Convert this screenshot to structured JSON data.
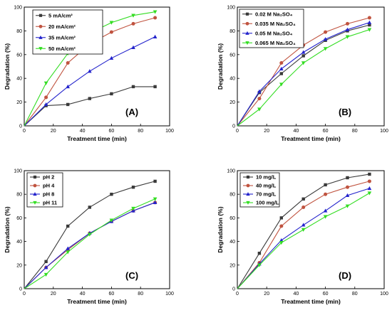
{
  "figure": {
    "panels": [
      {
        "tag": "(A)"
      },
      {
        "tag": "(B)"
      },
      {
        "tag": "(C)"
      },
      {
        "tag": "(D)"
      }
    ]
  },
  "chart_data": [
    {
      "type": "line",
      "panel": "(A)",
      "xlabel": "Treatment time (min)",
      "ylabel": "Degradation (%)",
      "xlim": [
        0,
        100
      ],
      "ylim": [
        0,
        100
      ],
      "xticks": [
        0,
        20,
        40,
        60,
        80,
        100
      ],
      "yticks": [
        0,
        20,
        40,
        60,
        80,
        100
      ],
      "x": [
        0,
        15,
        30,
        45,
        60,
        75,
        90
      ],
      "legend_position": "top-left",
      "series": [
        {
          "name": "5 mA/cm²",
          "color": "#3a3a3a",
          "marker": "square",
          "values": [
            0,
            17,
            18,
            23,
            27,
            33,
            33
          ]
        },
        {
          "name": "20 mA/cm²",
          "color": "#c0533f",
          "marker": "circle",
          "values": [
            0,
            24,
            53,
            69,
            79,
            86,
            91
          ]
        },
        {
          "name": "35 mA/cm²",
          "color": "#2323cc",
          "marker": "triangle-up",
          "values": [
            0,
            18,
            33,
            46,
            57,
            66,
            75
          ]
        },
        {
          "name": "50 mA/cm²",
          "color": "#33dd22",
          "marker": "triangle-down",
          "values": [
            0,
            36,
            61,
            78,
            87,
            93,
            96
          ]
        }
      ]
    },
    {
      "type": "line",
      "panel": "(B)",
      "xlabel": "Treatment time (min)",
      "ylabel": "Degradation (%)",
      "xlim": [
        0,
        100
      ],
      "ylim": [
        0,
        100
      ],
      "xticks": [
        0,
        20,
        40,
        60,
        80,
        100
      ],
      "yticks": [
        0,
        20,
        40,
        60,
        80,
        100
      ],
      "x": [
        0,
        15,
        30,
        45,
        60,
        75,
        90
      ],
      "legend_position": "top-left",
      "series": [
        {
          "name": "0.02 M Na₂SO₄",
          "color": "#3a3a3a",
          "marker": "square",
          "values": [
            0,
            28,
            44,
            59,
            72,
            80,
            85
          ]
        },
        {
          "name": "0.035 M Na₂SO₄",
          "color": "#c0533f",
          "marker": "circle",
          "values": [
            0,
            23,
            53,
            68,
            79,
            86,
            91
          ]
        },
        {
          "name": "0.05 M Na₂SO₄",
          "color": "#2323cc",
          "marker": "triangle-up",
          "values": [
            0,
            29,
            48,
            62,
            73,
            81,
            87
          ]
        },
        {
          "name": "0.065 M Na₂SO₄",
          "color": "#33dd22",
          "marker": "triangle-down",
          "values": [
            0,
            14,
            35,
            53,
            65,
            75,
            81
          ]
        }
      ]
    },
    {
      "type": "line",
      "panel": "(C)",
      "xlabel": "Treatment time (min)",
      "ylabel": "Degradation (%)",
      "xlim": [
        0,
        100
      ],
      "ylim": [
        0,
        100
      ],
      "xticks": [
        0,
        20,
        40,
        60,
        80,
        100
      ],
      "yticks": [
        0,
        20,
        40,
        60,
        80,
        100
      ],
      "x": [
        0,
        15,
        30,
        45,
        60,
        75,
        90
      ],
      "legend_position": "top-left",
      "series": [
        {
          "name": "pH 2",
          "color": "#3a3a3a",
          "marker": "square",
          "values": [
            0,
            23,
            53,
            69,
            80,
            86,
            91
          ]
        },
        {
          "name": "pH 4",
          "color": "#c0533f",
          "marker": "circle",
          "values": [
            0,
            18,
            33,
            47,
            57,
            66,
            73
          ]
        },
        {
          "name": "pH 8",
          "color": "#2323cc",
          "marker": "triangle-up",
          "values": [
            0,
            18,
            34,
            47,
            57,
            66,
            73
          ]
        },
        {
          "name": "pH 11",
          "color": "#33dd22",
          "marker": "triangle-down",
          "values": [
            0,
            12,
            31,
            46,
            58,
            68,
            76
          ]
        }
      ]
    },
    {
      "type": "line",
      "panel": "(D)",
      "xlabel": "Treatment time (min)",
      "ylabel": "Degradation (%)",
      "xlim": [
        0,
        100
      ],
      "ylim": [
        0,
        100
      ],
      "xticks": [
        0,
        20,
        40,
        60,
        80,
        100
      ],
      "yticks": [
        0,
        20,
        40,
        60,
        80,
        100
      ],
      "x": [
        0,
        15,
        30,
        45,
        60,
        75,
        90
      ],
      "legend_position": "top-left",
      "series": [
        {
          "name": "10 mg/L",
          "color": "#3a3a3a",
          "marker": "square",
          "values": [
            0,
            30,
            60,
            76,
            88,
            94,
            97
          ]
        },
        {
          "name": "40 mg/L",
          "color": "#c0533f",
          "marker": "circle",
          "values": [
            0,
            22,
            53,
            69,
            80,
            86,
            91
          ]
        },
        {
          "name": "70 mg/L",
          "color": "#2323cc",
          "marker": "triangle-up",
          "values": [
            0,
            21,
            41,
            54,
            66,
            79,
            85
          ]
        },
        {
          "name": "100 mg/L",
          "color": "#33dd22",
          "marker": "triangle-down",
          "values": [
            0,
            20,
            39,
            50,
            61,
            70,
            81
          ]
        }
      ]
    }
  ]
}
